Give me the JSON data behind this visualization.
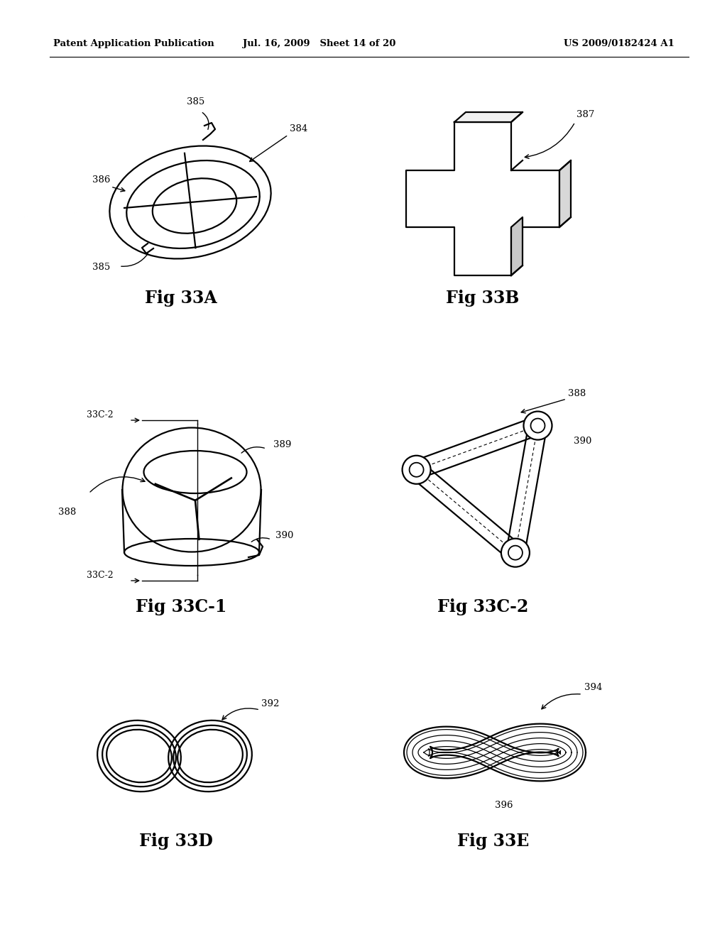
{
  "background_color": "#ffffff",
  "header_left": "Patent Application Publication",
  "header_mid": "Jul. 16, 2009   Sheet 14 of 20",
  "header_right": "US 2009/0182424 A1",
  "fig_labels": [
    "Fig 33A",
    "Fig 33B",
    "Fig 33C-1",
    "Fig 33C-2",
    "Fig 33D",
    "Fig 33E"
  ],
  "lw": 1.6
}
